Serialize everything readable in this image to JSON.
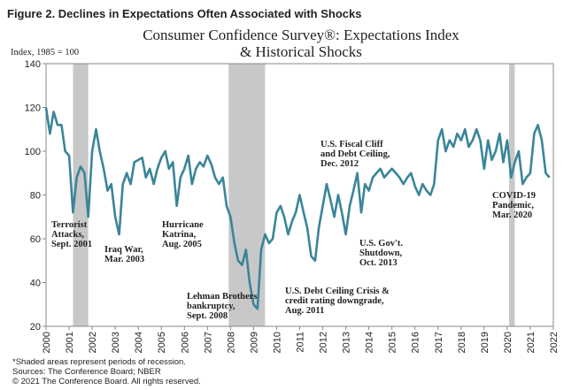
{
  "chart_data": {
    "type": "line",
    "figure_label": "Figure 2. Declines in Expectations Often Associated with Shocks",
    "title": [
      "Consumer Confidence Survey®: Expectations Index",
      "& Historical Shocks"
    ],
    "ylabel": "Index, 1985 = 100",
    "footnotes": [
      "*Shaded areas represent periods of recession.",
      "Sources: The Conference Board; NBER",
      "© 2021 The Conference Board. All rights reserved."
    ],
    "xlim": [
      2000,
      2022
    ],
    "xticks": [
      2000,
      2001,
      2002,
      2003,
      2004,
      2005,
      2006,
      2007,
      2008,
      2009,
      2010,
      2011,
      2012,
      2013,
      2014,
      2015,
      2016,
      2017,
      2018,
      2019,
      2020,
      2021,
      2022
    ],
    "ylim": [
      20,
      140
    ],
    "yticks": [
      20,
      40,
      60,
      80,
      100,
      120,
      140
    ],
    "grid": false,
    "recessions": [
      [
        2001.17,
        2001.83
      ],
      [
        2007.92,
        2009.5
      ],
      [
        2020.08,
        2020.33
      ]
    ],
    "recession_color": "#c8c8c8",
    "annotations": [
      [
        "Terrorist",
        "Attacks,",
        "Sept. 2001"
      ],
      [
        "Iraq War,",
        "Mar. 2003"
      ],
      [
        "Hurricane",
        "Katrina,",
        "Aug. 2005"
      ],
      [
        "Lehman Brothers",
        "bankruptcy,",
        "Sept. 2008"
      ],
      [
        "U.S. Debt Ceiling Crisis &",
        "credit rating downgrade,",
        "Aug. 2011"
      ],
      [
        "U.S. Fiscal Cliff",
        "and Debt Ceiling,",
        "Dec. 2012"
      ],
      [
        "U.S. Gov't.",
        "Shutdown,",
        "Oct. 2013"
      ],
      [
        "COVID-19",
        "Pandemic,",
        "Mar. 2020"
      ]
    ],
    "x": [
      2000,
      2000.17,
      2000.33,
      2000.5,
      2000.67,
      2000.83,
      2001,
      2001.17,
      2001.33,
      2001.5,
      2001.67,
      2001.83,
      2002,
      2002.17,
      2002.33,
      2002.5,
      2002.67,
      2002.83,
      2003,
      2003.17,
      2003.33,
      2003.5,
      2003.67,
      2003.83,
      2004,
      2004.17,
      2004.33,
      2004.5,
      2004.67,
      2004.83,
      2005,
      2005.17,
      2005.33,
      2005.5,
      2005.67,
      2005.83,
      2006,
      2006.17,
      2006.33,
      2006.5,
      2006.67,
      2006.83,
      2007,
      2007.17,
      2007.33,
      2007.5,
      2007.67,
      2007.83,
      2008,
      2008.17,
      2008.33,
      2008.5,
      2008.67,
      2008.83,
      2009,
      2009.17,
      2009.33,
      2009.5,
      2009.67,
      2009.83,
      2010,
      2010.17,
      2010.33,
      2010.5,
      2010.67,
      2010.83,
      2011,
      2011.17,
      2011.33,
      2011.5,
      2011.67,
      2011.83,
      2012,
      2012.17,
      2012.33,
      2012.5,
      2012.67,
      2012.83,
      2013,
      2013.17,
      2013.33,
      2013.5,
      2013.67,
      2013.83,
      2014,
      2014.17,
      2014.33,
      2014.5,
      2014.67,
      2014.83,
      2015,
      2015.17,
      2015.33,
      2015.5,
      2015.67,
      2015.83,
      2016,
      2016.17,
      2016.33,
      2016.5,
      2016.67,
      2016.83,
      2017,
      2017.17,
      2017.33,
      2017.5,
      2017.67,
      2017.83,
      2018,
      2018.17,
      2018.33,
      2018.5,
      2018.67,
      2018.83,
      2019,
      2019.17,
      2019.33,
      2019.5,
      2019.67,
      2019.83,
      2020,
      2020.17,
      2020.33,
      2020.5,
      2020.67,
      2020.83,
      2021,
      2021.17,
      2021.33,
      2021.5,
      2021.67,
      2021.83
    ],
    "series": [
      {
        "name": "Expectations Index",
        "color": "#3a8599",
        "values": [
          120,
          108,
          118,
          112,
          112,
          100,
          98,
          72,
          88,
          93,
          90,
          70,
          100,
          110,
          100,
          92,
          82,
          85,
          70,
          62,
          85,
          90,
          85,
          95,
          96,
          97,
          88,
          92,
          85,
          92,
          97,
          100,
          92,
          95,
          75,
          88,
          92,
          98,
          85,
          92,
          95,
          93,
          98,
          94,
          88,
          85,
          88,
          75,
          70,
          58,
          50,
          48,
          55,
          40,
          30,
          28,
          55,
          62,
          58,
          60,
          72,
          75,
          70,
          62,
          68,
          72,
          80,
          72,
          65,
          52,
          50,
          65,
          75,
          85,
          78,
          70,
          80,
          72,
          62,
          75,
          82,
          90,
          72,
          85,
          82,
          88,
          90,
          92,
          88,
          90,
          92,
          90,
          88,
          85,
          88,
          90,
          84,
          80,
          85,
          82,
          80,
          85,
          105,
          110,
          100,
          105,
          102,
          108,
          105,
          110,
          102,
          105,
          110,
          105,
          92,
          105,
          96,
          100,
          108,
          95,
          105,
          88,
          95,
          100,
          85,
          88,
          90,
          108,
          112,
          105,
          90,
          88
        ]
      }
    ]
  }
}
